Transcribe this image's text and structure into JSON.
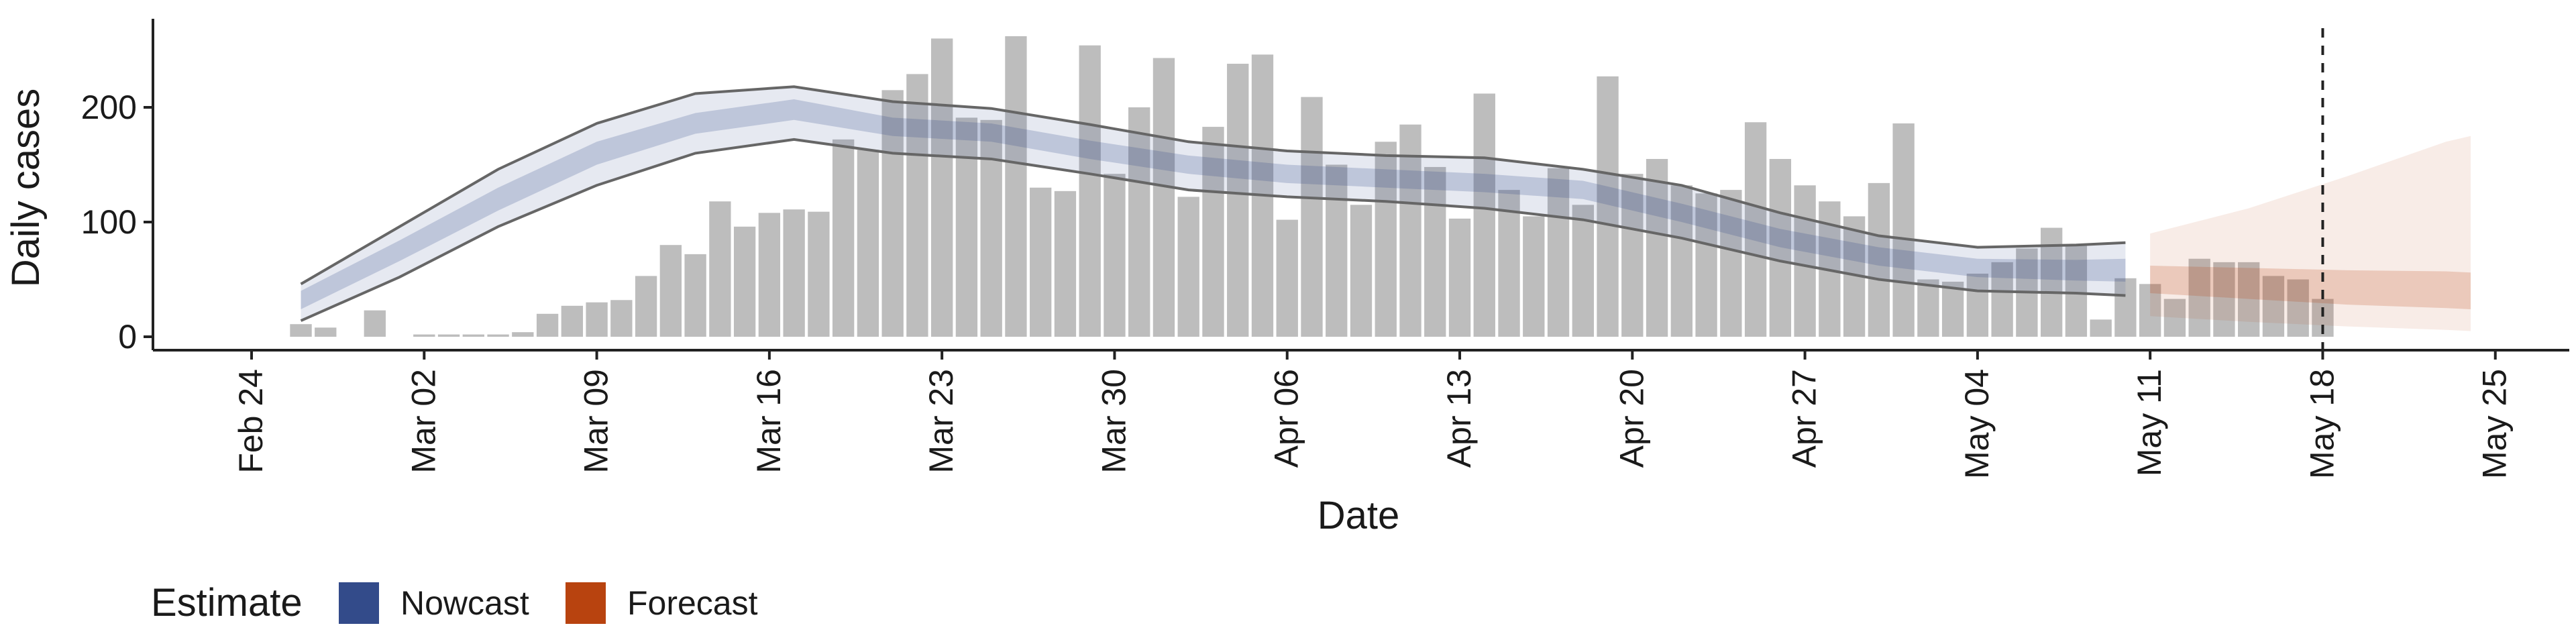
{
  "chart_data": {
    "type": "bar",
    "xlabel": "Date",
    "ylabel": "Daily cases",
    "ylim": [
      0,
      280
    ],
    "yticks": [
      0,
      100,
      200
    ],
    "x_tick_labels": [
      "Feb 24",
      "Mar 02",
      "Mar 09",
      "Mar 16",
      "Mar 23",
      "Mar 30",
      "Apr 06",
      "Apr 13",
      "Apr 20",
      "Apr 27",
      "May 04",
      "May 11",
      "May 18",
      "May 25"
    ],
    "x_tick_dates": [
      "2020-02-24",
      "2020-03-02",
      "2020-03-09",
      "2020-03-16",
      "2020-03-23",
      "2020-03-30",
      "2020-04-06",
      "2020-04-13",
      "2020-04-20",
      "2020-04-27",
      "2020-05-04",
      "2020-05-11",
      "2020-05-18",
      "2020-05-25"
    ],
    "xlim": [
      "2020-02-20",
      "2020-05-28"
    ],
    "reference_line_date": "2020-05-18",
    "grid": false,
    "legend_position": "bottom-left",
    "colors": {
      "bar": "#bdbdbd",
      "nowcast": "#334b8a",
      "forecast": "#b8430f",
      "ci_line": "#666666"
    },
    "legend": {
      "title": "Estimate",
      "entries": [
        {
          "label": "Nowcast",
          "color": "#334b8a"
        },
        {
          "label": "Forecast",
          "color": "#b8430f"
        }
      ]
    },
    "reported_cases": {
      "dates": [
        "2020-02-26",
        "2020-02-27",
        "2020-02-28",
        "2020-02-29",
        "2020-03-01",
        "2020-03-02",
        "2020-03-03",
        "2020-03-04",
        "2020-03-05",
        "2020-03-06",
        "2020-03-07",
        "2020-03-08",
        "2020-03-09",
        "2020-03-10",
        "2020-03-11",
        "2020-03-12",
        "2020-03-13",
        "2020-03-14",
        "2020-03-15",
        "2020-03-16",
        "2020-03-17",
        "2020-03-18",
        "2020-03-19",
        "2020-03-20",
        "2020-03-21",
        "2020-03-22",
        "2020-03-23",
        "2020-03-24",
        "2020-03-25",
        "2020-03-26",
        "2020-03-27",
        "2020-03-28",
        "2020-03-29",
        "2020-03-30",
        "2020-03-31",
        "2020-04-01",
        "2020-04-02",
        "2020-04-03",
        "2020-04-04",
        "2020-04-05",
        "2020-04-06",
        "2020-04-07",
        "2020-04-08",
        "2020-04-09",
        "2020-04-10",
        "2020-04-11",
        "2020-04-12",
        "2020-04-13",
        "2020-04-14",
        "2020-04-15",
        "2020-04-16",
        "2020-04-17",
        "2020-04-18",
        "2020-04-19",
        "2020-04-20",
        "2020-04-21",
        "2020-04-22",
        "2020-04-23",
        "2020-04-24",
        "2020-04-25",
        "2020-04-26",
        "2020-04-27",
        "2020-04-28",
        "2020-04-29",
        "2020-04-30",
        "2020-05-01",
        "2020-05-02",
        "2020-05-03",
        "2020-05-04",
        "2020-05-05",
        "2020-05-06",
        "2020-05-07",
        "2020-05-08",
        "2020-05-09",
        "2020-05-10",
        "2020-05-11",
        "2020-05-12",
        "2020-05-13",
        "2020-05-14",
        "2020-05-15",
        "2020-05-16",
        "2020-05-17",
        "2020-05-18"
      ],
      "values": [
        11,
        8,
        0,
        23,
        0,
        2,
        2,
        2,
        2,
        4,
        20,
        27,
        30,
        32,
        53,
        80,
        72,
        118,
        96,
        108,
        111,
        109,
        172,
        163,
        215,
        229,
        260,
        191,
        189,
        262,
        130,
        127,
        254,
        142,
        200,
        243,
        122,
        183,
        238,
        246,
        102,
        209,
        150,
        115,
        170,
        185,
        148,
        103,
        212,
        128,
        105,
        147,
        115,
        227,
        142,
        155,
        132,
        125,
        128,
        187,
        155,
        132,
        118,
        105,
        134,
        186,
        50,
        48,
        55,
        65,
        77,
        95,
        80,
        15,
        51,
        46,
        33,
        68,
        65,
        65,
        53,
        50,
        33
      ]
    },
    "nowcast": {
      "dates": [
        "2020-02-26",
        "2020-03-01",
        "2020-03-05",
        "2020-03-09",
        "2020-03-13",
        "2020-03-17",
        "2020-03-21",
        "2020-03-25",
        "2020-03-29",
        "2020-04-02",
        "2020-04-06",
        "2020-04-10",
        "2020-04-14",
        "2020-04-18",
        "2020-04-22",
        "2020-04-26",
        "2020-04-30",
        "2020-05-04",
        "2020-05-08",
        "2020-05-10"
      ],
      "median": [
        32,
        75,
        120,
        160,
        186,
        198,
        183,
        178,
        163,
        150,
        142,
        138,
        134,
        128,
        108,
        86,
        70,
        60,
        58,
        58
      ],
      "ci_50": [
        [
          24,
          40
        ],
        [
          66,
          84
        ],
        [
          110,
          130
        ],
        [
          150,
          170
        ],
        [
          177,
          195
        ],
        [
          189,
          207
        ],
        [
          175,
          191
        ],
        [
          170,
          186
        ],
        [
          155,
          171
        ],
        [
          142,
          158
        ],
        [
          134,
          150
        ],
        [
          130,
          146
        ],
        [
          126,
          142
        ],
        [
          120,
          136
        ],
        [
          100,
          116
        ],
        [
          78,
          94
        ],
        [
          62,
          78
        ],
        [
          52,
          68
        ],
        [
          49,
          67
        ],
        [
          48,
          68
        ]
      ],
      "ci_90": [
        [
          14,
          46
        ],
        [
          52,
          96
        ],
        [
          96,
          146
        ],
        [
          132,
          186
        ],
        [
          160,
          212
        ],
        [
          172,
          218
        ],
        [
          160,
          205
        ],
        [
          155,
          199
        ],
        [
          142,
          185
        ],
        [
          128,
          170
        ],
        [
          122,
          162
        ],
        [
          118,
          158
        ],
        [
          112,
          156
        ],
        [
          102,
          146
        ],
        [
          86,
          132
        ],
        [
          66,
          108
        ],
        [
          50,
          88
        ],
        [
          40,
          78
        ],
        [
          38,
          80
        ],
        [
          36,
          82
        ]
      ]
    },
    "forecast": {
      "dates": [
        "2020-05-11",
        "2020-05-15",
        "2020-05-19",
        "2020-05-23",
        "2020-05-24"
      ],
      "median": [
        50,
        46,
        43,
        40,
        39
      ],
      "ci_50": [
        [
          38,
          62
        ],
        [
          33,
          60
        ],
        [
          28,
          58
        ],
        [
          25,
          57
        ],
        [
          24,
          56
        ]
      ],
      "ci_90": [
        [
          18,
          90
        ],
        [
          13,
          112
        ],
        [
          9,
          140
        ],
        [
          6,
          170
        ],
        [
          5,
          175
        ]
      ]
    }
  }
}
